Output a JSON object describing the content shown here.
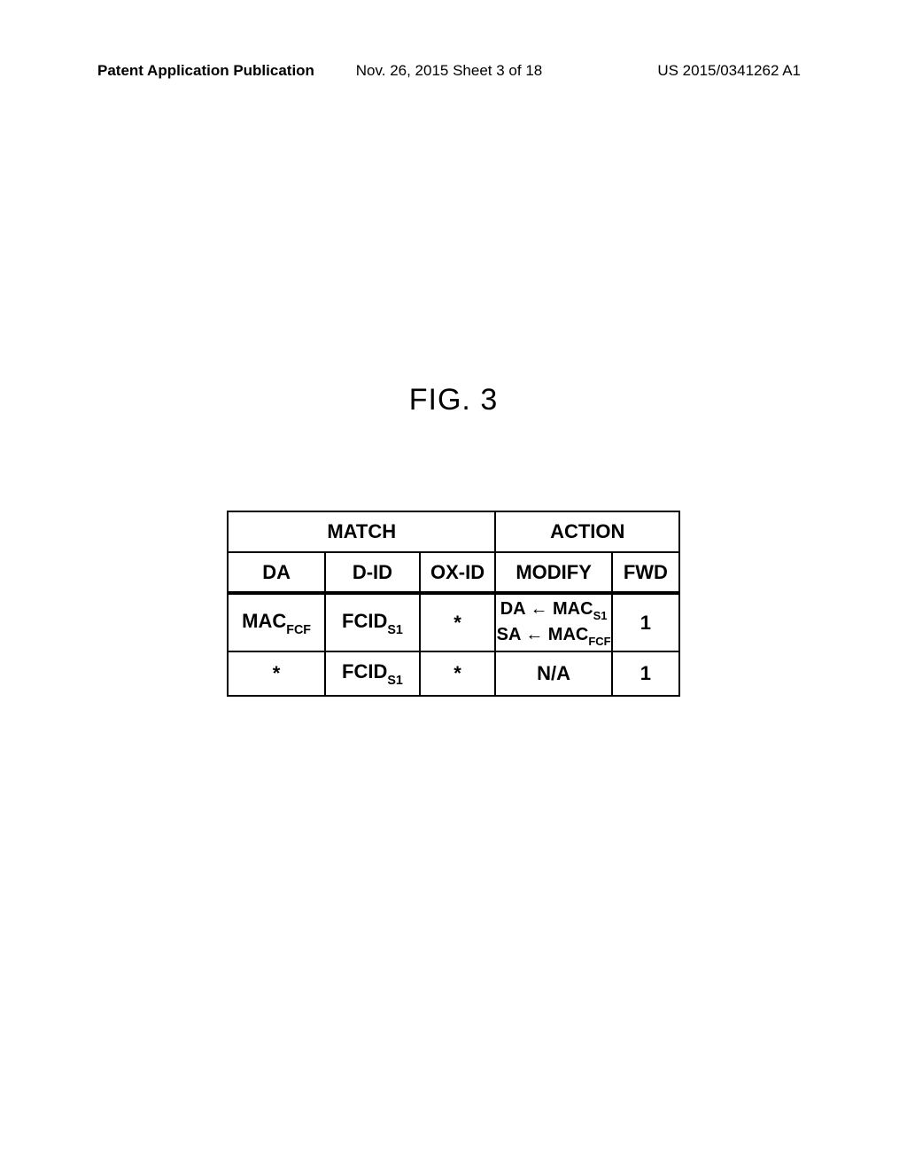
{
  "header": {
    "left": "Patent Application Publication",
    "center": "Nov. 26, 2015  Sheet 3 of 18",
    "right": "US 2015/0341262 A1"
  },
  "figure": {
    "label": "FIG. 3"
  },
  "table": {
    "type": "table",
    "header_group_left": "MATCH",
    "header_group_right": "ACTION",
    "columns": {
      "da": "DA",
      "did": "D-ID",
      "oxid": "OX-ID",
      "modify": "MODIFY",
      "fwd": "FWD"
    },
    "rows": [
      {
        "da_prefix": "MAC",
        "da_sub": "FCF",
        "did_prefix": "FCID",
        "did_sub": "S1",
        "oxid": "*",
        "modify_line1_left": "DA",
        "modify_line1_right_prefix": "MAC",
        "modify_line1_right_sub": "S1",
        "modify_line2_left": "SA",
        "modify_line2_right_prefix": "MAC",
        "modify_line2_right_sub": "FCF",
        "fwd": "1"
      },
      {
        "da": "*",
        "did_prefix": "FCID",
        "did_sub": "S1",
        "oxid": "*",
        "modify": "N/A",
        "fwd": "1"
      }
    ]
  },
  "styling": {
    "background_color": "#ffffff",
    "text_color": "#000000",
    "border_color": "#000000",
    "border_width": 2,
    "header_font_size": 17,
    "figure_label_font_size": 34,
    "table_font_size": 22,
    "modify_font_size": 20,
    "col_widths": {
      "da": 130,
      "did": 130,
      "oxid": 115,
      "modify": 160,
      "fwd": 92
    }
  }
}
